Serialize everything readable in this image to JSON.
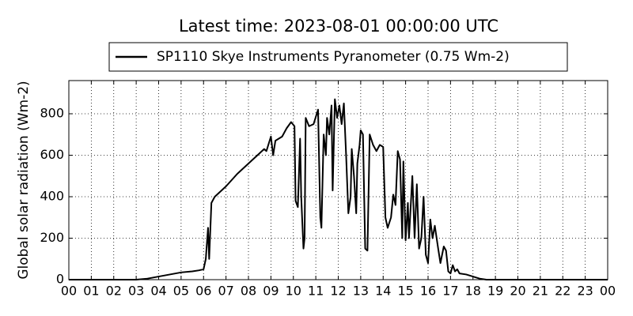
{
  "chart_data": {
    "type": "line",
    "title": "Latest time: 2023-08-01 00:00:00 UTC",
    "ylabel": "Global solar radiation (Wm-2)",
    "x": [
      0,
      3,
      3.5,
      4,
      4.5,
      5,
      5.5,
      5.8,
      6.0,
      6.1,
      6.2,
      6.25,
      6.35,
      6.5,
      7,
      7.5,
      8,
      8.5,
      8.7,
      8.8,
      9.0,
      9.1,
      9.2,
      9.5,
      9.7,
      9.9,
      10.05,
      10.1,
      10.2,
      10.3,
      10.35,
      10.45,
      10.5,
      10.55,
      10.7,
      10.9,
      11.1,
      11.2,
      11.25,
      11.35,
      11.45,
      11.5,
      11.6,
      11.7,
      11.75,
      11.85,
      11.95,
      12.05,
      12.15,
      12.25,
      12.35,
      12.45,
      12.55,
      12.6,
      12.7,
      12.8,
      12.85,
      12.95,
      13.0,
      13.1,
      13.2,
      13.3,
      13.4,
      13.55,
      13.7,
      13.85,
      14.0,
      14.1,
      14.2,
      14.35,
      14.45,
      14.55,
      14.65,
      14.75,
      14.85,
      14.9,
      15.0,
      15.1,
      15.15,
      15.3,
      15.4,
      15.5,
      15.6,
      15.7,
      15.8,
      15.9,
      16.0,
      16.1,
      16.2,
      16.3,
      16.45,
      16.55,
      16.7,
      16.8,
      16.9,
      17.0,
      17.1,
      17.2,
      17.3,
      17.4,
      17.7,
      18.0,
      18.3,
      18.6,
      24
    ],
    "series": [
      {
        "name": "SP1110 Skye Instruments Pyranometer (0.75 Wm-2)",
        "color": "#000000",
        "values": [
          0,
          0,
          5,
          15,
          25,
          35,
          40,
          45,
          50,
          100,
          250,
          100,
          370,
          400,
          450,
          510,
          560,
          610,
          630,
          620,
          690,
          600,
          670,
          690,
          730,
          760,
          740,
          380,
          350,
          680,
          400,
          150,
          200,
          780,
          740,
          750,
          820,
          300,
          250,
          700,
          600,
          780,
          700,
          840,
          430,
          870,
          780,
          840,
          750,
          850,
          600,
          320,
          400,
          630,
          500,
          320,
          560,
          650,
          720,
          700,
          150,
          140,
          700,
          650,
          620,
          650,
          640,
          300,
          250,
          300,
          410,
          360,
          620,
          580,
          200,
          570,
          190,
          370,
          200,
          500,
          200,
          460,
          150,
          200,
          400,
          120,
          80,
          290,
          200,
          260,
          150,
          80,
          160,
          140,
          40,
          30,
          70,
          40,
          50,
          30,
          25,
          15,
          5,
          0,
          0
        ]
      }
    ],
    "xlim": [
      0,
      24
    ],
    "xticks": [
      {
        "value": 0,
        "label": "00"
      },
      {
        "value": 1,
        "label": "01"
      },
      {
        "value": 2,
        "label": "02"
      },
      {
        "value": 3,
        "label": "03"
      },
      {
        "value": 4,
        "label": "04"
      },
      {
        "value": 5,
        "label": "05"
      },
      {
        "value": 6,
        "label": "06"
      },
      {
        "value": 7,
        "label": "07"
      },
      {
        "value": 8,
        "label": "08"
      },
      {
        "value": 9,
        "label": "09"
      },
      10,
      11,
      12,
      13,
      14,
      15,
      16,
      17,
      18,
      19,
      20,
      21,
      22,
      23,
      {
        "value": 24,
        "label": "00"
      }
    ],
    "ylim": [
      0,
      960
    ],
    "yticks": [
      0,
      200,
      400,
      600,
      800
    ],
    "grid": true,
    "legend": "upper center"
  }
}
